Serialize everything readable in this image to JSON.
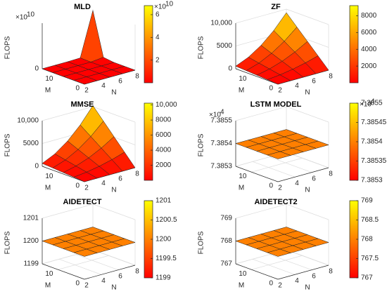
{
  "chart_data": [
    {
      "type": "surface",
      "title": "MLD",
      "x_label": "N",
      "y_label": "M",
      "z_label": "FLOPS",
      "x": [
        2,
        3.5,
        5,
        6.5,
        8
      ],
      "y": [
        0,
        4,
        8,
        12,
        16
      ],
      "z": [
        [
          0,
          0,
          0,
          0,
          0
        ],
        [
          0,
          0,
          0,
          0,
          0
        ],
        [
          0,
          0,
          0,
          0,
          0
        ],
        [
          0,
          0,
          0,
          0,
          0.2
        ],
        [
          0,
          0,
          0,
          0.05,
          6.8
        ]
      ],
      "xlim": [
        2,
        8
      ],
      "ylim": [
        0,
        16
      ],
      "zlim": [
        0,
        7
      ],
      "xticks": [
        2,
        4,
        6,
        8
      ],
      "yticks": [
        0,
        10
      ],
      "zticks": [
        0
      ],
      "z_exponent": [
        "×10",
        "10"
      ],
      "clim": [
        0,
        6.8
      ],
      "cticks": [
        2,
        4,
        6
      ],
      "c_exponent": [
        "×10",
        "10"
      ],
      "colormap": [
        "#ff0000",
        "#ffff00"
      ]
    },
    {
      "type": "surface",
      "title": "ZF",
      "x_label": "N",
      "y_label": "M",
      "z_label": "FLOPS",
      "x": [
        2,
        3.5,
        5,
        6.5,
        8
      ],
      "y": [
        0,
        4,
        8,
        12,
        16
      ],
      "z": [
        [
          0,
          0,
          0,
          0,
          0
        ],
        [
          144,
          441,
          900,
          1521,
          2304
        ],
        [
          288,
          882,
          1800,
          3042,
          4608
        ],
        [
          432,
          1323,
          2700,
          4563,
          6912
        ],
        [
          576,
          1764,
          3600,
          6084,
          9216
        ]
      ],
      "xlim": [
        2,
        8
      ],
      "ylim": [
        0,
        16
      ],
      "zlim": [
        0,
        10000
      ],
      "xticks": [
        2,
        4,
        6,
        8
      ],
      "yticks": [
        0,
        10
      ],
      "zticks": [
        0,
        5000,
        {
          "value": 10000,
          "label": "10,000"
        }
      ],
      "clim": [
        0,
        9216
      ],
      "cticks": [
        2000,
        4000,
        6000,
        8000
      ],
      "colormap": [
        "#ff0000",
        "#ffff00"
      ]
    },
    {
      "type": "surface",
      "title": "MMSE",
      "x_label": "N",
      "y_label": "M",
      "z_label": "FLOPS",
      "x": [
        2,
        3.5,
        5,
        6.5,
        8
      ],
      "y": [
        0,
        4,
        8,
        12,
        16
      ],
      "z": [
        [
          0,
          0,
          0,
          0,
          0
        ],
        [
          160,
          490,
          1000,
          1690,
          2560
        ],
        [
          320,
          980,
          2000,
          3380,
          5120
        ],
        [
          480,
          1470,
          3000,
          5070,
          7680
        ],
        [
          640,
          1960,
          4000,
          6760,
          10240
        ]
      ],
      "xlim": [
        2,
        8
      ],
      "ylim": [
        0,
        16
      ],
      "zlim": [
        0,
        10000
      ],
      "xticks": [
        2,
        4,
        6,
        8
      ],
      "yticks": [
        0,
        10
      ],
      "zticks": [
        0,
        5000,
        {
          "value": 10000,
          "label": "10,000"
        }
      ],
      "clim": [
        0,
        10240
      ],
      "cticks": [
        2000,
        4000,
        6000,
        8000,
        {
          "value": 10000,
          "label": "10,000"
        }
      ],
      "colormap": [
        "#ff0000",
        "#ffff00"
      ]
    },
    {
      "type": "surface",
      "title": "LSTM MODEL",
      "x_label": "N",
      "y_label": "M",
      "z_label": "FLOPS",
      "x": [
        2,
        3.5,
        5,
        6.5,
        8
      ],
      "y": [
        0,
        4,
        8,
        12,
        16
      ],
      "z": [
        [
          7.3854,
          7.3854,
          7.3854,
          7.3854,
          7.3854
        ],
        [
          7.3854,
          7.3854,
          7.3854,
          7.3854,
          7.3854
        ],
        [
          7.3854,
          7.3854,
          7.3854,
          7.3854,
          7.3854
        ],
        [
          7.3854,
          7.3854,
          7.3854,
          7.3854,
          7.3854
        ],
        [
          7.3854,
          7.3854,
          7.3854,
          7.3854,
          7.3854
        ]
      ],
      "xlim": [
        2,
        8
      ],
      "ylim": [
        0,
        16
      ],
      "zlim": [
        7.3853,
        7.3855
      ],
      "xticks": [
        2,
        4,
        6,
        8
      ],
      "yticks": [
        0,
        10
      ],
      "zticks": [
        7.3853,
        7.3854,
        7.3855
      ],
      "z_exponent": [
        "×10",
        "4"
      ],
      "clim": [
        7.3853,
        7.3855
      ],
      "cticks": [
        7.3853,
        7.38535,
        7.3854,
        7.38545,
        7.3855
      ],
      "c_exponent": [
        "×10",
        "4"
      ],
      "colormap": [
        "#ff0000",
        "#ffff00"
      ]
    },
    {
      "type": "surface",
      "title": "AIDETECT",
      "x_label": "N",
      "y_label": "M",
      "z_label": "FLOPS",
      "x": [
        2,
        3.5,
        5,
        6.5,
        8
      ],
      "y": [
        0,
        4,
        8,
        12,
        16
      ],
      "z": [
        [
          1200,
          1200,
          1200,
          1200,
          1200
        ],
        [
          1200,
          1200,
          1200,
          1200,
          1200
        ],
        [
          1200,
          1200,
          1200,
          1200,
          1200
        ],
        [
          1200,
          1200,
          1200,
          1200,
          1200
        ],
        [
          1200,
          1200,
          1200,
          1200,
          1200
        ]
      ],
      "xlim": [
        2,
        8
      ],
      "ylim": [
        0,
        16
      ],
      "zlim": [
        1199,
        1201
      ],
      "xticks": [
        2,
        4,
        6,
        8
      ],
      "yticks": [
        0,
        10
      ],
      "zticks": [
        1199,
        1200,
        1201
      ],
      "clim": [
        1199,
        1201
      ],
      "cticks": [
        1199,
        1199.5,
        1200,
        1200.5,
        1201
      ],
      "colormap": [
        "#ff0000",
        "#ffff00"
      ]
    },
    {
      "type": "surface",
      "title": "AIDETECT2",
      "x_label": "N",
      "y_label": "M",
      "z_label": "FLOPS",
      "x": [
        2,
        3.5,
        5,
        6.5,
        8
      ],
      "y": [
        0,
        4,
        8,
        12,
        16
      ],
      "z": [
        [
          768,
          768,
          768,
          768,
          768
        ],
        [
          768,
          768,
          768,
          768,
          768
        ],
        [
          768,
          768,
          768,
          768,
          768
        ],
        [
          768,
          768,
          768,
          768,
          768
        ],
        [
          768,
          768,
          768,
          768,
          768
        ]
      ],
      "xlim": [
        2,
        8
      ],
      "ylim": [
        0,
        16
      ],
      "zlim": [
        767,
        769
      ],
      "xticks": [
        2,
        4,
        6,
        8
      ],
      "yticks": [
        0,
        10
      ],
      "zticks": [
        767,
        768,
        769
      ],
      "clim": [
        767,
        769
      ],
      "cticks": [
        767,
        767.5,
        768,
        768.5,
        769
      ],
      "colormap": [
        "#ff0000",
        "#ffff00"
      ]
    }
  ]
}
